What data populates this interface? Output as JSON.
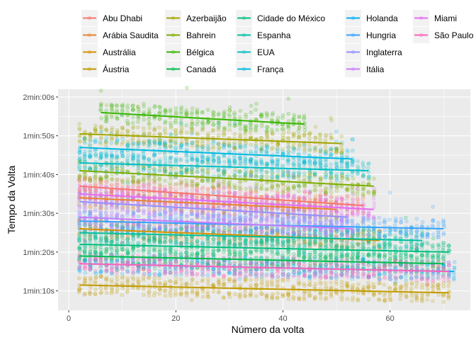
{
  "chart_data": {
    "type": "scatter",
    "xlabel": "Número da volta",
    "ylabel": "Tempo da Volta",
    "xlim": [
      -2,
      75
    ],
    "ylim": [
      65,
      122
    ],
    "x_ticks": [
      0,
      20,
      40,
      60
    ],
    "x_tick_labels": [
      "0",
      "20",
      "40",
      "60"
    ],
    "y_ticks": [
      70,
      80,
      90,
      100,
      110,
      120
    ],
    "y_tick_labels": [
      "1min:10s",
      "1min:20s",
      "1min:30s",
      "1min:40s",
      "1min:50s",
      "2min:00s"
    ],
    "grid": true,
    "legend_position": "top",
    "colors": {
      "panel_background": "#ebebeb",
      "grid": "#ffffff",
      "legend_key_background": "#f2f2f2"
    },
    "series": [
      {
        "name": "Abu Dhabi",
        "color": "#F8766D",
        "lap_range": [
          2,
          55
        ],
        "trend": [
          97,
          92
        ]
      },
      {
        "name": "Arábia Saudita",
        "color": "#EA8331",
        "lap_range": [
          2,
          50
        ],
        "trend": [
          94,
          91
        ]
      },
      {
        "name": "Austrália",
        "color": "#D89000",
        "lap_range": [
          2,
          58
        ],
        "trend": [
          86,
          83
        ]
      },
      {
        "name": "Áustria",
        "color": "#C09B00",
        "lap_range": [
          2,
          71
        ],
        "trend": [
          71.5,
          69.5
        ]
      },
      {
        "name": "Azerbaijão",
        "color": "#A3A500",
        "lap_range": [
          2,
          51
        ],
        "trend": [
          110.5,
          108
        ]
      },
      {
        "name": "Bahrein",
        "color": "#7CAE00",
        "lap_range": [
          2,
          57
        ],
        "trend": [
          101,
          97
        ]
      },
      {
        "name": "Bélgica",
        "color": "#39B600",
        "lap_range": [
          6,
          44
        ],
        "trend": [
          116,
          113
        ]
      },
      {
        "name": "Canadá",
        "color": "#00BB4E",
        "lap_range": [
          2,
          70
        ],
        "trend": [
          79,
          77
        ]
      },
      {
        "name": "Cidade do México",
        "color": "#00BF7D",
        "lap_range": [
          2,
          71
        ],
        "trend": [
          82,
          80
        ]
      },
      {
        "name": "Espanha",
        "color": "#00C1A3",
        "lap_range": [
          2,
          66
        ],
        "trend": [
          85,
          83
        ]
      },
      {
        "name": "EUA",
        "color": "#00BFC4",
        "lap_range": [
          2,
          56
        ],
        "trend": [
          103,
          101
        ]
      },
      {
        "name": "França",
        "color": "#00BAE0",
        "lap_range": [
          2,
          53
        ],
        "trend": [
          107,
          104
        ]
      },
      {
        "name": "Holanda",
        "color": "#00B0F6",
        "lap_range": [
          2,
          72
        ],
        "trend": [
          77,
          75
        ]
      },
      {
        "name": "Hungria",
        "color": "#35A2FF",
        "lap_range": [
          2,
          70
        ],
        "trend": [
          88,
          86
        ]
      },
      {
        "name": "Inglaterra",
        "color": "#9590FF",
        "lap_range": [
          2,
          52
        ],
        "trend": [
          93,
          89
        ]
      },
      {
        "name": "Itália",
        "color": "#C77CFF",
        "lap_range": [
          2,
          53
        ],
        "trend": [
          89,
          86
        ]
      },
      {
        "name": "Miami",
        "color": "#E76BF3",
        "lap_range": [
          2,
          57
        ],
        "trend": [
          95,
          91
        ]
      },
      {
        "name": "São Paulo",
        "color": "#FF62BC",
        "lap_range": [
          2,
          71
        ],
        "trend": [
          77,
          75
        ]
      }
    ]
  }
}
